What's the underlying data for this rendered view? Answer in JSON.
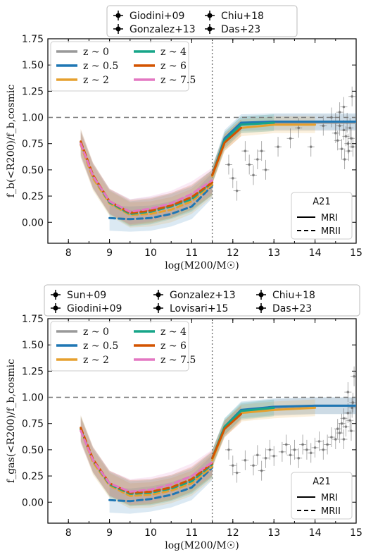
{
  "chart_data": [
    {
      "type": "line",
      "xlabel": "log(M200/M☉)",
      "ylabel": "f_b(<R200)/f_b,cosmic",
      "xlim": [
        7.5,
        15
      ],
      "ylim": [
        -0.2,
        1.75
      ],
      "xticks": [
        8,
        9,
        10,
        11,
        12,
        13,
        14,
        15
      ],
      "yticks": [
        0.0,
        0.25,
        0.5,
        0.75,
        1.0,
        1.25,
        1.5,
        1.75
      ],
      "hline": 1.0,
      "vline": 11.5,
      "obs_legend": [
        "Giodini+09",
        "Gonzalez+13",
        "Chiu+18",
        "Das+23"
      ],
      "model_legend_title": "A21",
      "model_legend": [
        "MRI",
        "MRII"
      ],
      "series": [
        {
          "name": "z ~ 0",
          "color": "#999999",
          "mrii": [
            [
              8.3,
              0.74
            ],
            [
              8.6,
              0.44
            ],
            [
              9.0,
              0.2
            ],
            [
              9.5,
              0.1
            ],
            [
              10.0,
              0.12
            ],
            [
              10.5,
              0.16
            ],
            [
              11.0,
              0.23
            ],
            [
              11.5,
              0.38
            ]
          ],
          "mri": [
            [
              11.5,
              0.45
            ],
            [
              11.8,
              0.78
            ],
            [
              12.2,
              0.93
            ],
            [
              13.0,
              0.95
            ],
            [
              14.0,
              0.95
            ],
            [
              15.0,
              0.95
            ]
          ]
        },
        {
          "name": "z ~ 0.5",
          "color": "#1f77b4",
          "mrii": [
            [
              9.0,
              0.04
            ],
            [
              9.5,
              0.03
            ],
            [
              10.0,
              0.04
            ],
            [
              10.5,
              0.08
            ],
            [
              11.0,
              0.15
            ],
            [
              11.5,
              0.35
            ]
          ],
          "mri": [
            [
              11.5,
              0.45
            ],
            [
              11.8,
              0.8
            ],
            [
              12.2,
              0.95
            ],
            [
              13.0,
              0.96
            ],
            [
              14.0,
              0.96
            ],
            [
              15.0,
              0.96
            ]
          ]
        },
        {
          "name": "z ~ 2",
          "color": "#e6a02e",
          "mrii": [
            [
              8.3,
              0.74
            ],
            [
              8.6,
              0.42
            ],
            [
              9.0,
              0.18
            ],
            [
              9.5,
              0.07
            ],
            [
              10.0,
              0.08
            ],
            [
              10.5,
              0.12
            ],
            [
              11.0,
              0.2
            ],
            [
              11.5,
              0.36
            ]
          ],
          "mri": [
            [
              11.5,
              0.44
            ],
            [
              11.8,
              0.76
            ],
            [
              12.2,
              0.9
            ],
            [
              13.0,
              0.93
            ],
            [
              14.0,
              0.93
            ]
          ]
        },
        {
          "name": "z ~ 4",
          "color": "#17a589",
          "mrii": [
            [
              8.3,
              0.76
            ],
            [
              8.6,
              0.44
            ],
            [
              9.0,
              0.19
            ],
            [
              9.5,
              0.08
            ],
            [
              10.0,
              0.1
            ],
            [
              10.5,
              0.15
            ],
            [
              11.0,
              0.22
            ],
            [
              11.5,
              0.38
            ]
          ],
          "mri": [
            [
              11.5,
              0.45
            ],
            [
              11.8,
              0.78
            ],
            [
              12.2,
              0.93
            ],
            [
              13.0,
              0.95
            ]
          ]
        },
        {
          "name": "z ~ 6",
          "color": "#d35400",
          "mrii": [
            [
              8.3,
              0.77
            ],
            [
              8.6,
              0.45
            ],
            [
              9.0,
              0.2
            ],
            [
              9.5,
              0.09
            ],
            [
              10.0,
              0.11
            ],
            [
              10.5,
              0.16
            ],
            [
              11.0,
              0.24
            ],
            [
              11.5,
              0.38
            ]
          ],
          "mri": [
            [
              11.5,
              0.45
            ],
            [
              11.8,
              0.76
            ],
            [
              12.2,
              0.9
            ]
          ]
        },
        {
          "name": "z ~ 7.5",
          "color": "#e377c2",
          "mrii": [
            [
              8.3,
              0.75
            ],
            [
              8.6,
              0.44
            ],
            [
              9.0,
              0.2
            ],
            [
              9.5,
              0.1
            ],
            [
              10.0,
              0.13
            ],
            [
              10.5,
              0.18
            ],
            [
              11.0,
              0.27
            ],
            [
              11.5,
              0.4
            ]
          ],
          "mri": []
        }
      ],
      "observations": [
        [
          11.9,
          0.55
        ],
        [
          12.0,
          0.42
        ],
        [
          12.1,
          0.3
        ],
        [
          12.3,
          0.68
        ],
        [
          12.4,
          0.55
        ],
        [
          12.5,
          0.45
        ],
        [
          12.6,
          0.6
        ],
        [
          12.7,
          0.68
        ],
        [
          12.8,
          0.5
        ],
        [
          13.1,
          0.72
        ],
        [
          13.4,
          0.8
        ],
        [
          13.6,
          0.9
        ],
        [
          13.9,
          0.72
        ],
        [
          14.2,
          0.92
        ],
        [
          14.4,
          1.0
        ],
        [
          14.5,
          0.85
        ],
        [
          14.55,
          0.78
        ],
        [
          14.6,
          0.92
        ],
        [
          14.65,
          0.7
        ],
        [
          14.7,
          0.88
        ],
        [
          14.72,
          0.6
        ],
        [
          14.75,
          0.82
        ],
        [
          14.78,
          0.95
        ],
        [
          14.8,
          0.75
        ],
        [
          14.82,
          0.68
        ],
        [
          14.85,
          0.9
        ],
        [
          14.88,
          0.8
        ],
        [
          14.9,
          1.2
        ],
        [
          14.92,
          0.72
        ],
        [
          14.6,
          1.05
        ],
        [
          14.7,
          1.1
        ],
        [
          14.5,
          0.95
        ]
      ]
    },
    {
      "type": "line",
      "xlabel": "log(M200/M☉)",
      "ylabel": "f_gas(<R200)/f_b,cosmic",
      "xlim": [
        7.5,
        15
      ],
      "ylim": [
        -0.2,
        1.75
      ],
      "xticks": [
        8,
        9,
        10,
        11,
        12,
        13,
        14,
        15
      ],
      "yticks": [
        0.0,
        0.25,
        0.5,
        0.75,
        1.0,
        1.25,
        1.5,
        1.75
      ],
      "hline": 1.0,
      "vline": 11.5,
      "obs_legend": [
        "Sun+09",
        "Gonzalez+13",
        "Chiu+18",
        "Giodini+09",
        "Lovisari+15",
        "Das+23"
      ],
      "model_legend_title": "A21",
      "model_legend": [
        "MRI",
        "MRII"
      ],
      "series": [
        {
          "name": "z ~ 0",
          "color": "#999999",
          "mrii": [
            [
              8.3,
              0.7
            ],
            [
              8.6,
              0.4
            ],
            [
              9.0,
              0.18
            ],
            [
              9.5,
              0.09
            ],
            [
              10.0,
              0.1
            ],
            [
              10.5,
              0.14
            ],
            [
              11.0,
              0.21
            ],
            [
              11.5,
              0.36
            ]
          ],
          "mri": [
            [
              11.5,
              0.42
            ],
            [
              11.8,
              0.7
            ],
            [
              12.2,
              0.86
            ],
            [
              13.0,
              0.9
            ],
            [
              14.0,
              0.92
            ],
            [
              15.0,
              0.92
            ]
          ]
        },
        {
          "name": "z ~ 0.5",
          "color": "#1f77b4",
          "mrii": [
            [
              9.0,
              0.02
            ],
            [
              9.5,
              0.01
            ],
            [
              10.0,
              0.03
            ],
            [
              10.5,
              0.07
            ],
            [
              11.0,
              0.14
            ],
            [
              11.5,
              0.33
            ]
          ],
          "mri": [
            [
              11.5,
              0.42
            ],
            [
              11.8,
              0.72
            ],
            [
              12.2,
              0.88
            ],
            [
              13.0,
              0.91
            ],
            [
              14.0,
              0.92
            ],
            [
              15.0,
              0.92
            ]
          ]
        },
        {
          "name": "z ~ 2",
          "color": "#e6a02e",
          "mrii": [
            [
              8.3,
              0.69
            ],
            [
              8.6,
              0.38
            ],
            [
              9.0,
              0.16
            ],
            [
              9.5,
              0.06
            ],
            [
              10.0,
              0.07
            ],
            [
              10.5,
              0.11
            ],
            [
              11.0,
              0.18
            ],
            [
              11.5,
              0.34
            ]
          ],
          "mri": [
            [
              11.5,
              0.4
            ],
            [
              11.8,
              0.7
            ],
            [
              12.2,
              0.85
            ],
            [
              13.0,
              0.88
            ],
            [
              14.0,
              0.9
            ]
          ]
        },
        {
          "name": "z ~ 4",
          "color": "#17a589",
          "mrii": [
            [
              8.3,
              0.7
            ],
            [
              8.6,
              0.4
            ],
            [
              9.0,
              0.17
            ],
            [
              9.5,
              0.08
            ],
            [
              10.0,
              0.09
            ],
            [
              10.5,
              0.13
            ],
            [
              11.0,
              0.2
            ],
            [
              11.5,
              0.36
            ]
          ],
          "mri": [
            [
              11.5,
              0.42
            ],
            [
              11.8,
              0.72
            ],
            [
              12.2,
              0.87
            ],
            [
              13.0,
              0.9
            ]
          ]
        },
        {
          "name": "z ~ 6",
          "color": "#d35400",
          "mrii": [
            [
              8.3,
              0.71
            ],
            [
              8.6,
              0.41
            ],
            [
              9.0,
              0.18
            ],
            [
              9.5,
              0.09
            ],
            [
              10.0,
              0.1
            ],
            [
              10.5,
              0.14
            ],
            [
              11.0,
              0.22
            ],
            [
              11.5,
              0.37
            ]
          ],
          "mri": [
            [
              11.5,
              0.42
            ],
            [
              11.8,
              0.7
            ],
            [
              12.2,
              0.84
            ]
          ]
        },
        {
          "name": "z ~ 7.5",
          "color": "#e377c2",
          "mrii": [
            [
              8.3,
              0.68
            ],
            [
              8.6,
              0.4
            ],
            [
              9.0,
              0.18
            ],
            [
              9.5,
              0.1
            ],
            [
              10.0,
              0.12
            ],
            [
              10.5,
              0.17
            ],
            [
              11.0,
              0.25
            ],
            [
              11.5,
              0.38
            ]
          ],
          "mri": []
        }
      ],
      "observations": [
        [
          11.9,
          0.5
        ],
        [
          12.0,
          0.35
        ],
        [
          12.1,
          0.28
        ],
        [
          12.3,
          0.4
        ],
        [
          12.5,
          0.35
        ],
        [
          12.6,
          0.45
        ],
        [
          12.7,
          0.3
        ],
        [
          12.8,
          0.42
        ],
        [
          12.9,
          0.5
        ],
        [
          13.0,
          0.44
        ],
        [
          13.2,
          0.48
        ],
        [
          13.3,
          0.55
        ],
        [
          13.4,
          0.45
        ],
        [
          13.5,
          0.5
        ],
        [
          13.6,
          0.42
        ],
        [
          13.7,
          0.55
        ],
        [
          13.8,
          0.5
        ],
        [
          13.9,
          0.47
        ],
        [
          14.0,
          0.52
        ],
        [
          14.1,
          0.58
        ],
        [
          14.2,
          0.5
        ],
        [
          14.3,
          0.55
        ],
        [
          14.4,
          0.62
        ],
        [
          14.5,
          0.6
        ],
        [
          14.55,
          0.7
        ],
        [
          14.6,
          0.66
        ],
        [
          14.65,
          0.75
        ],
        [
          14.7,
          0.8
        ],
        [
          14.75,
          0.72
        ],
        [
          14.8,
          0.85
        ],
        [
          14.85,
          0.78
        ],
        [
          14.9,
          0.9
        ],
        [
          14.92,
          0.95
        ],
        [
          14.88,
          0.68
        ],
        [
          14.8,
          1.05
        ],
        [
          14.7,
          0.6
        ],
        [
          14.95,
          1.2
        ]
      ]
    }
  ]
}
